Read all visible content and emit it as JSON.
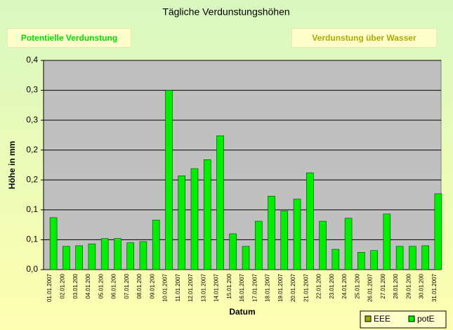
{
  "buttons": [
    "Potentielle Verdunstung",
    "Verdunstung über Wasser"
  ],
  "chart_data": {
    "type": "bar",
    "title": "Tägliche Verdunstungshöhen",
    "x_label": "Datum",
    "y_label": "Höhe in mm",
    "categories": [
      "01.01.2007",
      "02.01.200",
      "03.01.200",
      "04.01.200",
      "05.01.200",
      "06.01.200",
      "07.01.200",
      "08.01.200",
      "09.01.200",
      "10.01.2007",
      "11.01.2007",
      "12.01.2007",
      "13.01.2007",
      "14.01.2007",
      "15.01.200",
      "16.01.2007",
      "17.01.2007",
      "18.01.2007",
      "19.01.2007",
      "20.01.2007",
      "21.01.2007",
      "22.01.200",
      "23.01.200",
      "24.01.200",
      "25.01.200",
      "26.01.2007",
      "27.01.200",
      "28.01.200",
      "29.01.200",
      "30.01.200",
      "31.01.2007"
    ],
    "series": [
      {
        "name": "EEE",
        "color": "#99aa00",
        "values": [
          null,
          null,
          null,
          null,
          null,
          null,
          null,
          null,
          null,
          null,
          null,
          null,
          null,
          null,
          null,
          null,
          null,
          null,
          null,
          null,
          null,
          null,
          null,
          null,
          null,
          null,
          null,
          null,
          null,
          null,
          null
        ]
      },
      {
        "name": "potE",
        "color": "#00ee00",
        "values": [
          0.087,
          0.039,
          0.04,
          0.043,
          0.052,
          0.052,
          0.045,
          0.047,
          0.083,
          0.3,
          0.157,
          0.169,
          0.184,
          0.224,
          0.06,
          0.039,
          0.081,
          0.123,
          0.098,
          0.118,
          0.162,
          0.081,
          0.034,
          0.086,
          0.029,
          0.032,
          0.093,
          0.039,
          0.039,
          0.04,
          0.127
        ]
      }
    ],
    "ylim": [
      0,
      0.35
    ],
    "yticks": [
      {
        "value": 0,
        "label": "0,0"
      },
      {
        "value": 0.05,
        "label": "0,1"
      },
      {
        "value": 0.1,
        "label": "0,1"
      },
      {
        "value": 0.15,
        "label": "0,2"
      },
      {
        "value": 0.2,
        "label": "0,2"
      },
      {
        "value": 0.25,
        "label": "0,3"
      },
      {
        "value": 0.3,
        "label": "0,3"
      },
      {
        "value": 0.35,
        "label": "0,4"
      }
    ],
    "grid": true,
    "legend": "bottom-right"
  }
}
